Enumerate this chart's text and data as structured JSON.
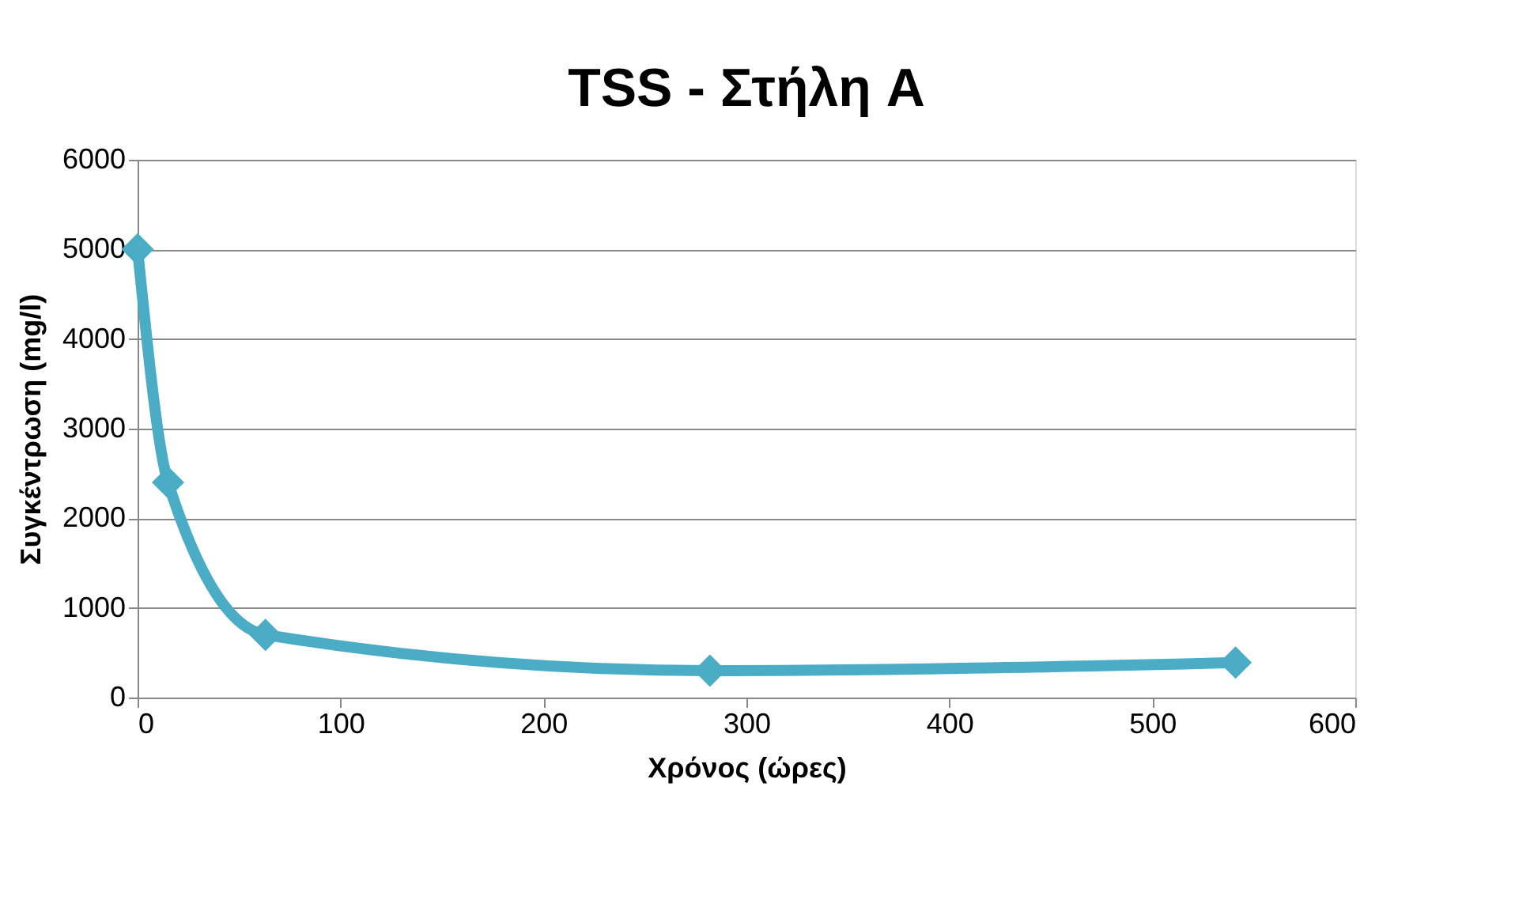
{
  "chart_data": {
    "type": "line",
    "title": "TSS - Στήλη A",
    "xlabel": "Χρόνος (ώρες)",
    "ylabel": "Συγκέντρωση (mg/l)",
    "x": [
      0,
      15,
      63,
      282,
      541
    ],
    "series": [
      {
        "color": "#4bacc6",
        "values": [
          5000,
          2400,
          700,
          300,
          390
        ]
      }
    ],
    "xlim": [
      0,
      600
    ],
    "xticks": [
      0,
      100,
      200,
      300,
      400,
      500,
      600
    ],
    "ylim": [
      0,
      6000
    ],
    "yticks": [
      0,
      1000,
      2000,
      3000,
      4000,
      5000,
      6000
    ],
    "grid": "y",
    "marker": "diamond",
    "line_style": "solid"
  }
}
